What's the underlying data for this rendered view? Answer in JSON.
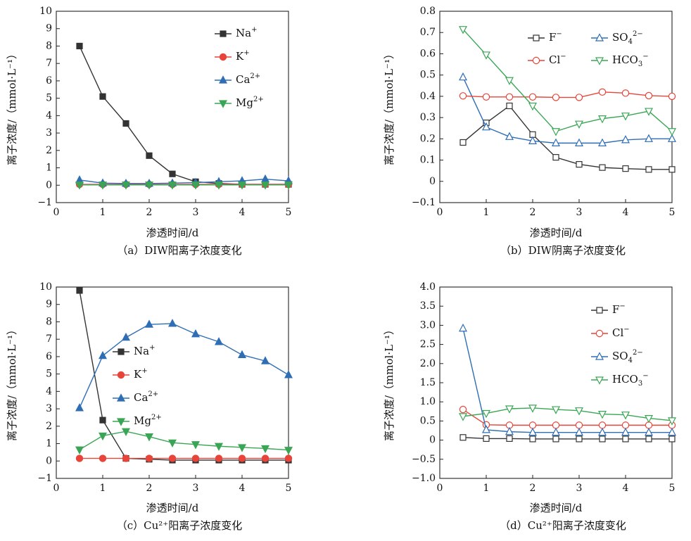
{
  "x_axis_label": "渗透时间/d",
  "y_axis_label": "离子浓度/（mmol·L⁻¹）",
  "chart_data": [
    {
      "id": "a",
      "type": "line",
      "caption": "（a）DIW阳离子浓度变化",
      "xlim": [
        0,
        5
      ],
      "ylim": [
        -1,
        10
      ],
      "xticks": [
        0,
        1,
        2,
        3,
        4,
        5
      ],
      "yticks": [
        -1,
        0,
        1,
        2,
        3,
        4,
        5,
        6,
        7,
        8,
        9,
        10
      ],
      "ytick_labels": [
        "−1",
        "0",
        "1",
        "2",
        "3",
        "4",
        "5",
        "6",
        "7",
        "8",
        "9",
        "10"
      ],
      "x": [
        0.5,
        1,
        1.5,
        2,
        2.5,
        3,
        3.5,
        4,
        4.5,
        5
      ],
      "legend_position": "top-right",
      "legend_layout": "column",
      "series": [
        {
          "name": "Na⁺",
          "color": "#333333",
          "marker": "square",
          "filled": true,
          "values": [
            8.0,
            5.1,
            3.55,
            1.7,
            0.65,
            0.2,
            0.1,
            0.05,
            0.05,
            0.05
          ]
        },
        {
          "name": "K⁺",
          "color": "#e8443a",
          "marker": "circle",
          "filled": true,
          "values": [
            0.05,
            0.05,
            0.05,
            0.05,
            0.05,
            0.05,
            0.05,
            0.05,
            0.05,
            0.05
          ]
        },
        {
          "name": "Ca²⁺",
          "color": "#2f6eb5",
          "marker": "triangle-up",
          "filled": true,
          "values": [
            0.3,
            0.12,
            0.1,
            0.1,
            0.12,
            0.15,
            0.2,
            0.25,
            0.35,
            0.25
          ]
        },
        {
          "name": "Mg²⁺",
          "color": "#3aa655",
          "marker": "triangle-down",
          "filled": true,
          "values": [
            0.02,
            0.02,
            0.02,
            0.02,
            0.02,
            0.02,
            0.02,
            0.02,
            0.02,
            0.02
          ]
        }
      ]
    },
    {
      "id": "b",
      "type": "line",
      "caption": "（b）DIW阴离子浓度变化",
      "xlim": [
        0,
        5
      ],
      "ylim": [
        -0.1,
        0.8
      ],
      "xticks": [
        0,
        1,
        2,
        3,
        4,
        5
      ],
      "yticks": [
        -0.1,
        0,
        0.1,
        0.2,
        0.3,
        0.4,
        0.5,
        0.6,
        0.7,
        0.8
      ],
      "ytick_labels": [
        "−0.1",
        "0",
        "0.1",
        "0.2",
        "0.3",
        "0.4",
        "0.5",
        "0.6",
        "0.7",
        "0.8"
      ],
      "x": [
        0.5,
        1,
        1.5,
        2,
        2.5,
        3,
        3.5,
        4,
        4.5,
        5
      ],
      "legend_position": "top-right",
      "legend_layout": "grid",
      "series": [
        {
          "name": "F⁻",
          "color": "#333333",
          "marker": "square",
          "filled": false,
          "values": [
            0.183,
            0.275,
            0.355,
            0.22,
            0.113,
            0.08,
            0.065,
            0.06,
            0.056,
            0.056
          ]
        },
        {
          "name": "SO₄²⁻",
          "color": "#2f6eb5",
          "marker": "triangle-up",
          "filled": false,
          "values": [
            0.49,
            0.255,
            0.21,
            0.19,
            0.18,
            0.18,
            0.18,
            0.195,
            0.2,
            0.2
          ]
        },
        {
          "name": "Cl⁻",
          "color": "#e8443a",
          "marker": "circle",
          "filled": false,
          "values": [
            0.402,
            0.397,
            0.397,
            0.397,
            0.395,
            0.395,
            0.42,
            0.415,
            0.403,
            0.4
          ]
        },
        {
          "name": "HCO₃⁻",
          "color": "#3aa655",
          "marker": "triangle-down",
          "filled": false,
          "values": [
            0.715,
            0.595,
            0.475,
            0.355,
            0.235,
            0.27,
            0.295,
            0.308,
            0.33,
            0.235
          ]
        }
      ]
    },
    {
      "id": "c",
      "type": "line",
      "caption": "（c）Cu²⁺阳离子浓度变化",
      "xlim": [
        0,
        5
      ],
      "ylim": [
        -1,
        10
      ],
      "xticks": [
        0,
        1,
        2,
        3,
        4,
        5
      ],
      "yticks": [
        -1,
        0,
        1,
        2,
        3,
        4,
        5,
        6,
        7,
        8,
        9,
        10
      ],
      "ytick_labels": [
        "−1",
        "0",
        "1",
        "2",
        "3",
        "4",
        "5",
        "6",
        "7",
        "8",
        "9",
        "10"
      ],
      "x": [
        0.5,
        1,
        1.5,
        2,
        2.5,
        3,
        3.5,
        4,
        4.5,
        5
      ],
      "legend_position": "center-right",
      "legend_layout": "column",
      "series": [
        {
          "name": "Na⁺",
          "color": "#333333",
          "marker": "square",
          "filled": true,
          "values": [
            9.8,
            2.35,
            0.15,
            0.1,
            0.05,
            0.05,
            0.05,
            0.05,
            0.05,
            0.05
          ]
        },
        {
          "name": "K⁺",
          "color": "#e8443a",
          "marker": "circle",
          "filled": true,
          "values": [
            0.15,
            0.15,
            0.15,
            0.15,
            0.15,
            0.15,
            0.15,
            0.15,
            0.15,
            0.15
          ]
        },
        {
          "name": "Ca²⁺",
          "color": "#2f6eb5",
          "marker": "triangle-up",
          "filled": true,
          "values": [
            3.05,
            6.05,
            7.1,
            7.85,
            7.9,
            7.3,
            6.85,
            6.1,
            5.75,
            4.95
          ]
        },
        {
          "name": "Mg²⁺",
          "color": "#3aa655",
          "marker": "triangle-down",
          "filled": true,
          "values": [
            0.65,
            1.45,
            1.7,
            1.4,
            1.05,
            0.95,
            0.85,
            0.78,
            0.72,
            0.63
          ]
        }
      ]
    },
    {
      "id": "d",
      "type": "line",
      "caption": "（d）Cu²⁺阳离子浓度变化",
      "xlim": [
        0,
        5
      ],
      "ylim": [
        -1,
        4
      ],
      "xticks": [
        0,
        1,
        2,
        3,
        4,
        5
      ],
      "yticks": [
        -1,
        -0.5,
        0,
        0.5,
        1,
        1.5,
        2,
        2.5,
        3,
        3.5,
        4
      ],
      "ytick_labels": [
        "−1.0",
        "−0.5",
        "0",
        "0.5",
        "1.0",
        "1.5",
        "2.0",
        "2.5",
        "3.0",
        "3.5",
        "4.0"
      ],
      "x": [
        0.5,
        1,
        1.5,
        2,
        2.5,
        3,
        3.5,
        4,
        4.5,
        5
      ],
      "legend_position": "top-right",
      "legend_layout": "column",
      "series": [
        {
          "name": "F⁻",
          "color": "#333333",
          "marker": "square",
          "filled": false,
          "values": [
            0.07,
            0.04,
            0.04,
            0.03,
            0.03,
            0.03,
            0.03,
            0.03,
            0.03,
            0.03
          ]
        },
        {
          "name": "Cl⁻",
          "color": "#e8443a",
          "marker": "circle",
          "filled": false,
          "values": [
            0.8,
            0.4,
            0.39,
            0.39,
            0.39,
            0.39,
            0.39,
            0.39,
            0.39,
            0.39
          ]
        },
        {
          "name": "SO₄²⁻",
          "color": "#2f6eb5",
          "marker": "triangle-up",
          "filled": false,
          "values": [
            2.92,
            0.27,
            0.22,
            0.2,
            0.2,
            0.2,
            0.2,
            0.2,
            0.2,
            0.2
          ]
        },
        {
          "name": "HCO₃⁻",
          "color": "#3aa655",
          "marker": "triangle-down",
          "filled": false,
          "values": [
            0.62,
            0.7,
            0.82,
            0.84,
            0.8,
            0.77,
            0.68,
            0.66,
            0.57,
            0.51
          ]
        }
      ]
    }
  ]
}
